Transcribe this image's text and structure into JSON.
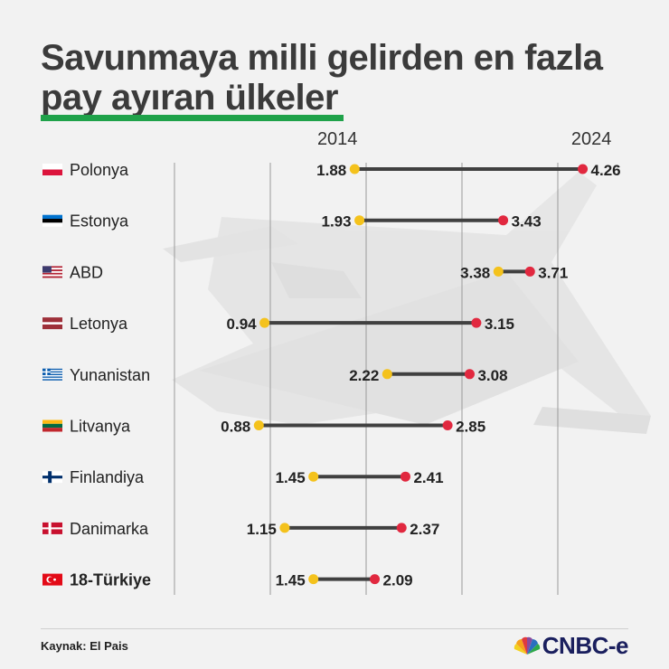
{
  "title": {
    "line1": "Savunmaya milli gelirden en fazla",
    "line2": "pay ayıran ülkeler"
  },
  "footer": {
    "source": "Kaynak: El Pais",
    "brand": "CNBC-e"
  },
  "colors": {
    "accent_green": "#1fa24a",
    "dot_2014": "#f4c21c",
    "dot_2024": "#e1283f",
    "connector": "#404040"
  },
  "chart_data": {
    "type": "dumbbell",
    "series": [
      {
        "name": "2014",
        "color": "#f4c21c"
      },
      {
        "name": "2024",
        "color": "#e1283f"
      }
    ],
    "legend_position": "top",
    "categories": [
      "Polonya",
      "Estonya",
      "ABD",
      "Letonya",
      "Yunanistan",
      "Litvanya",
      "Finlandiya",
      "Danimarka",
      "18-Türkiye"
    ],
    "flags": [
      "poland-flag",
      "estonia-flag",
      "usa-flag",
      "latvia-flag",
      "greece-flag",
      "lithuania-flag",
      "finland-flag",
      "denmark-flag",
      "turkey-flag"
    ],
    "bold_categories": [
      "18-Türkiye"
    ],
    "values_2014": [
      1.88,
      1.93,
      3.38,
      0.94,
      2.22,
      0.88,
      1.45,
      1.15,
      1.45
    ],
    "values_2024": [
      4.26,
      3.43,
      3.71,
      3.15,
      3.08,
      2.85,
      2.41,
      2.37,
      2.09
    ],
    "labels_2014": [
      "1.88",
      "1.93",
      "3.38",
      "0.94",
      "2.22",
      "0.88",
      "1.45",
      "1.15",
      "1.45"
    ],
    "labels_2024": [
      "4.26",
      "3.43",
      "3.71",
      "3.15",
      "3.08",
      "2.85",
      "2.41",
      "2.37",
      "2.09"
    ],
    "xlim": [
      0,
      4.5
    ],
    "gridlines": [
      0,
      1,
      2,
      3,
      4
    ],
    "grid": true
  }
}
